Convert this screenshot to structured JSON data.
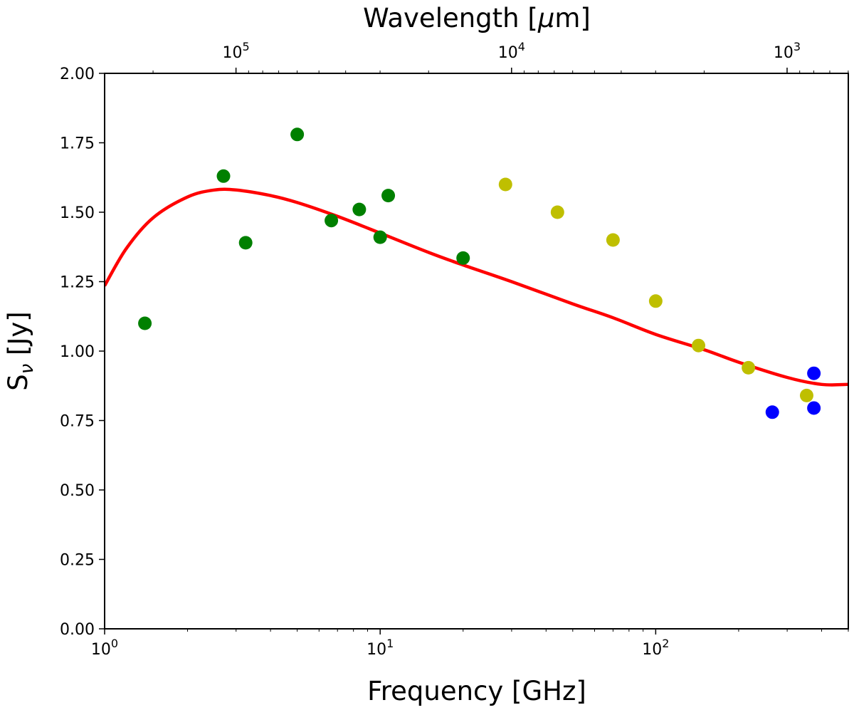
{
  "chart_data": {
    "type": "scatter",
    "xlabel": "Frequency [GHz]",
    "ylabel": "S_ν [Jy]",
    "top_xlabel": "Wavelength [μm]",
    "x_scale": "log",
    "xlim": [
      1,
      500
    ],
    "ylim": [
      0,
      2
    ],
    "y_ticks": [
      "0.00",
      "0.25",
      "0.50",
      "0.75",
      "1.00",
      "1.25",
      "1.50",
      "1.75",
      "2.00"
    ],
    "x_ticks": [
      {
        "value": 1,
        "base": "10",
        "exp": "0"
      },
      {
        "value": 10,
        "base": "10",
        "exp": "1"
      },
      {
        "value": 100,
        "base": "10",
        "exp": "2"
      }
    ],
    "top_x_ticks": [
      {
        "wavelength_um": 100000,
        "base": "10",
        "exp": "5"
      },
      {
        "wavelength_um": 10000,
        "base": "10",
        "exp": "4"
      },
      {
        "wavelength_um": 1000,
        "base": "10",
        "exp": "3"
      }
    ],
    "grid": false,
    "series": [
      {
        "color": "#008000",
        "points": [
          [
            1.4,
            1.1
          ],
          [
            2.7,
            1.63
          ],
          [
            3.25,
            1.39
          ],
          [
            5.0,
            1.78
          ],
          [
            6.65,
            1.47
          ],
          [
            8.4,
            1.51
          ],
          [
            10.0,
            1.41
          ],
          [
            10.7,
            1.56
          ],
          [
            20.0,
            1.335
          ]
        ]
      },
      {
        "color": "#bfbf00",
        "points": [
          [
            28.5,
            1.6
          ],
          [
            44.0,
            1.5
          ],
          [
            70.0,
            1.4
          ],
          [
            100.0,
            1.18
          ],
          [
            143.0,
            1.02
          ],
          [
            217.0,
            0.94
          ],
          [
            353.0,
            0.84
          ]
        ]
      },
      {
        "color": "#0000ff",
        "points": [
          [
            265.0,
            0.78
          ],
          [
            375.0,
            0.92
          ],
          [
            375.0,
            0.795
          ]
        ]
      }
    ],
    "fit_curve": {
      "color": "#ff0000",
      "points": [
        [
          1.0,
          1.235
        ],
        [
          1.2,
          1.37
        ],
        [
          1.5,
          1.48
        ],
        [
          2.0,
          1.555
        ],
        [
          2.5,
          1.58
        ],
        [
          3.0,
          1.58
        ],
        [
          4.0,
          1.56
        ],
        [
          5.0,
          1.535
        ],
        [
          7.0,
          1.485
        ],
        [
          10.0,
          1.425
        ],
        [
          15.0,
          1.355
        ],
        [
          20.0,
          1.31
        ],
        [
          30.0,
          1.25
        ],
        [
          50.0,
          1.17
        ],
        [
          70.0,
          1.12
        ],
        [
          100.0,
          1.06
        ],
        [
          150.0,
          1.005
        ],
        [
          200.0,
          0.96
        ],
        [
          300.0,
          0.905
        ],
        [
          400.0,
          0.88
        ],
        [
          500.0,
          0.88
        ]
      ]
    }
  }
}
